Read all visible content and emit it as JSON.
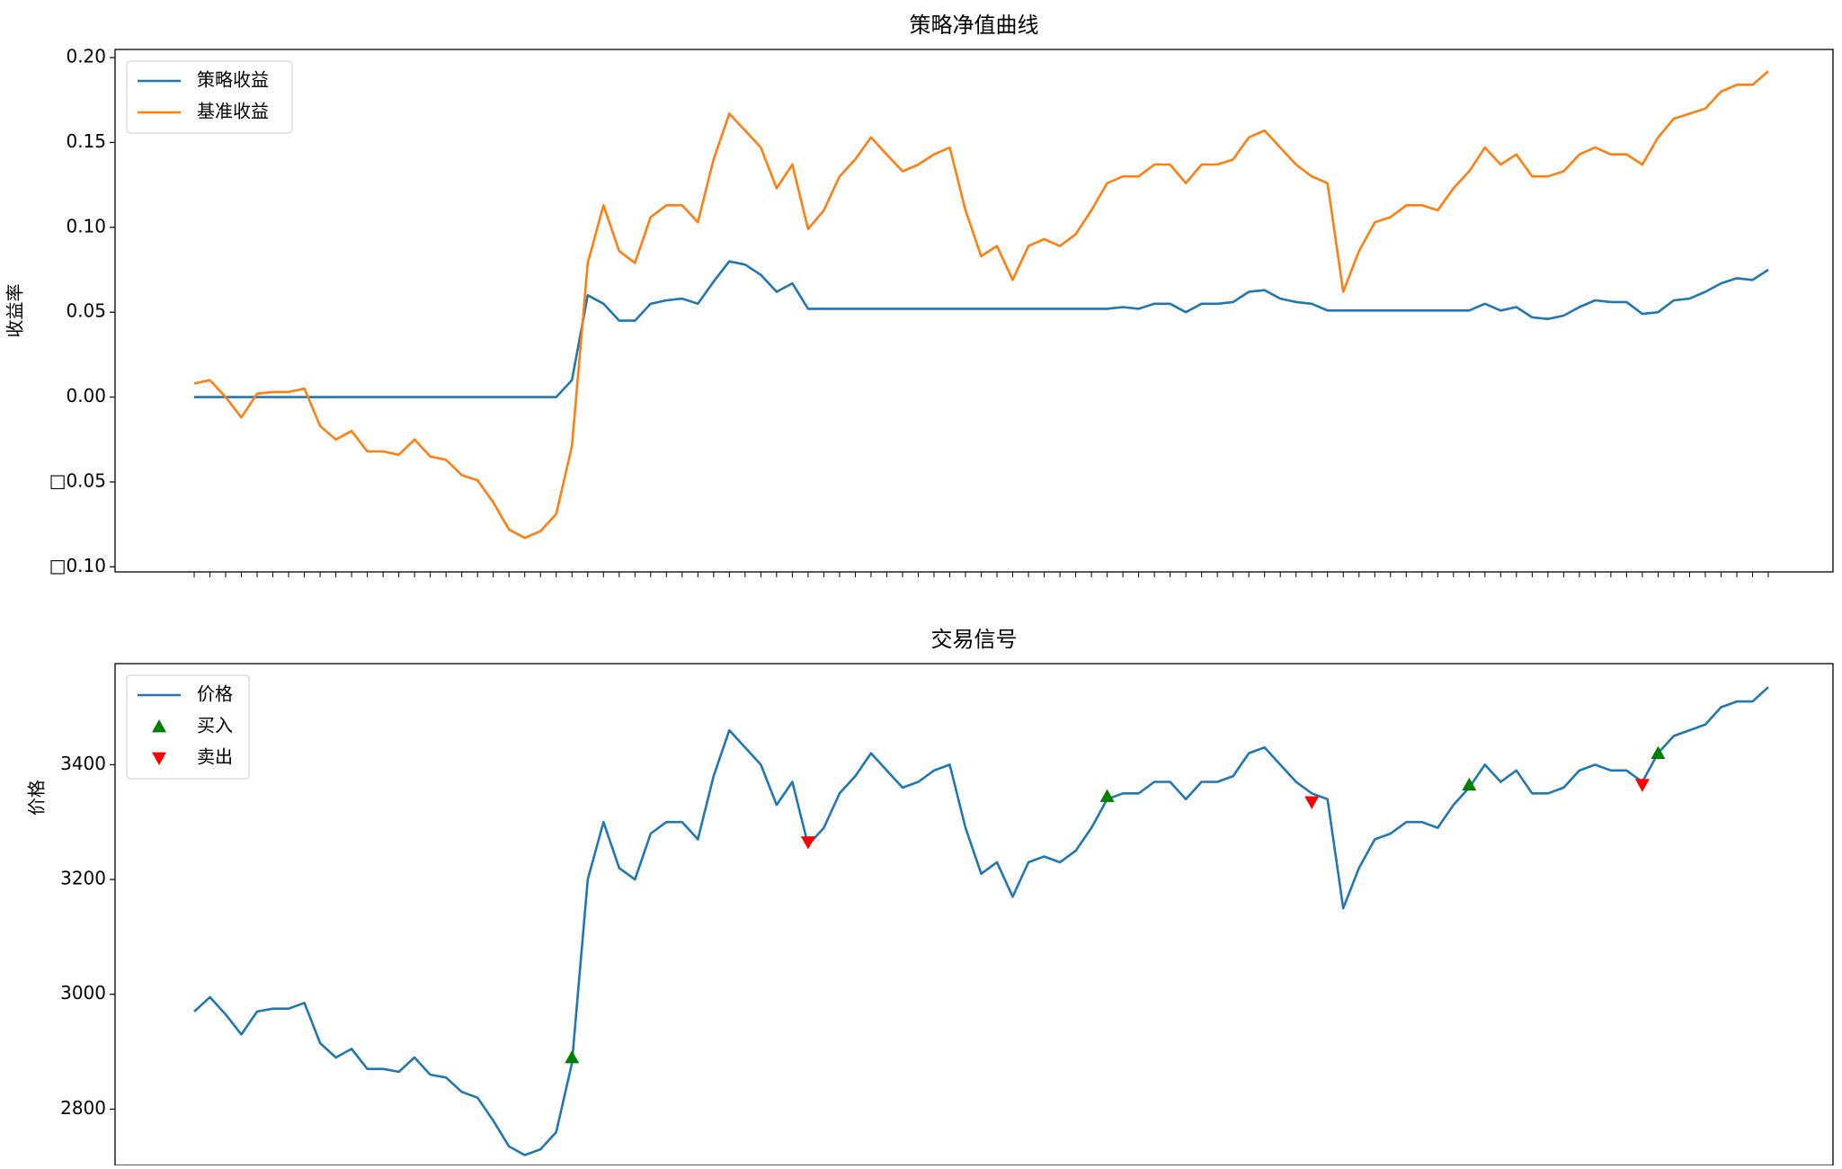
{
  "chart_data": [
    {
      "type": "line",
      "title": "策略净值曲线",
      "y_label": "收益率",
      "ylim": [
        -0.103,
        0.2048
      ],
      "yticks": [
        {
          "value": -0.1,
          "label": "□0.10"
        },
        {
          "value": -0.05,
          "label": "□0.05"
        },
        {
          "value": 0,
          "label": "0.00"
        },
        0.05,
        {
          "value": 0.1,
          "label": "0.10"
        },
        0.15,
        {
          "value": 0.2,
          "label": "0.20"
        }
      ],
      "legend": "upper left",
      "series": [
        {
          "name": "策略收益",
          "color": "#1f77b4",
          "values": [
            0,
            0,
            0,
            0,
            0,
            0,
            0,
            0,
            0,
            0,
            0,
            0,
            0,
            0,
            0,
            0,
            0,
            0,
            0,
            0,
            0,
            0,
            0,
            0,
            0.01,
            0.06,
            0.055,
            0.045,
            0.045,
            0.055,
            0.057,
            0.058,
            0.055,
            0.068,
            0.08,
            0.078,
            0.072,
            0.062,
            0.067,
            0.052,
            0.052,
            0.052,
            0.052,
            0.052,
            0.052,
            0.052,
            0.052,
            0.052,
            0.052,
            0.052,
            0.052,
            0.052,
            0.052,
            0.052,
            0.052,
            0.052,
            0.052,
            0.052,
            0.052,
            0.053,
            0.052,
            0.055,
            0.055,
            0.05,
            0.055,
            0.055,
            0.056,
            0.062,
            0.063,
            0.058,
            0.056,
            0.055,
            0.051,
            0.051,
            0.051,
            0.051,
            0.051,
            0.051,
            0.051,
            0.051,
            0.051,
            0.051,
            0.055,
            0.051,
            0.053,
            0.047,
            0.046,
            0.048,
            0.053,
            0.057,
            0.056,
            0.056,
            0.049,
            0.05,
            0.057,
            0.058,
            0.062,
            0.067,
            0.07,
            0.069,
            0.075
          ]
        },
        {
          "name": "基准收益",
          "color": "#ff7f0e",
          "values": [
            0.008,
            0.01,
            0.0,
            -0.012,
            0.002,
            0.003,
            0.003,
            0.005,
            -0.017,
            -0.025,
            -0.02,
            -0.032,
            -0.032,
            -0.034,
            -0.025,
            -0.035,
            -0.037,
            -0.046,
            -0.049,
            -0.062,
            -0.078,
            -0.083,
            -0.079,
            -0.069,
            -0.029,
            0.079,
            0.113,
            0.086,
            0.079,
            0.106,
            0.113,
            0.113,
            0.103,
            0.14,
            0.167,
            0.157,
            0.147,
            0.123,
            0.137,
            0.099,
            0.11,
            0.13,
            0.14,
            0.153,
            0.143,
            0.133,
            0.137,
            0.143,
            0.147,
            0.11,
            0.083,
            0.089,
            0.069,
            0.089,
            0.093,
            0.089,
            0.096,
            0.11,
            0.126,
            0.13,
            0.13,
            0.137,
            0.137,
            0.126,
            0.137,
            0.137,
            0.14,
            0.153,
            0.157,
            0.147,
            0.137,
            0.13,
            0.126,
            0.062,
            0.086,
            0.103,
            0.106,
            0.113,
            0.113,
            0.11,
            0.123,
            0.133,
            0.147,
            0.137,
            0.143,
            0.13,
            0.13,
            0.133,
            0.143,
            0.147,
            0.143,
            0.143,
            0.137,
            0.153,
            0.164,
            0.167,
            0.17,
            0.18,
            0.184,
            0.184,
            0.192
          ]
        }
      ]
    },
    {
      "type": "line",
      "title": "交易信号",
      "y_label": "价格",
      "ylim": [
        2702,
        3576
      ],
      "yticks": [
        2800,
        3000,
        3200,
        3400
      ],
      "legend": "upper left",
      "series": [
        {
          "name": "价格",
          "color": "#1f77b4",
          "values": [
            2970,
            2995,
            2965,
            2930,
            2970,
            2975,
            2975,
            2985,
            2915,
            2890,
            2905,
            2870,
            2870,
            2865,
            2890,
            2860,
            2855,
            2830,
            2820,
            2780,
            2735,
            2720,
            2730,
            2760,
            2880,
            3200,
            3300,
            3220,
            3200,
            3280,
            3300,
            3300,
            3270,
            3380,
            3460,
            3430,
            3400,
            3330,
            3370,
            3260,
            3290,
            3350,
            3380,
            3420,
            3390,
            3360,
            3370,
            3390,
            3400,
            3290,
            3210,
            3230,
            3170,
            3230,
            3240,
            3230,
            3250,
            3290,
            3340,
            3350,
            3350,
            3370,
            3370,
            3340,
            3370,
            3370,
            3380,
            3420,
            3430,
            3400,
            3370,
            3350,
            3340,
            3150,
            3220,
            3270,
            3280,
            3300,
            3300,
            3290,
            3330,
            3360,
            3400,
            3370,
            3390,
            3350,
            3350,
            3360,
            3390,
            3400,
            3390,
            3390,
            3370,
            3420,
            3450,
            3460,
            3470,
            3500,
            3510,
            3510,
            3535
          ]
        },
        {
          "name": "买入",
          "type": "scatter",
          "marker": "up",
          "color": "#008000",
          "x": [
            24,
            58,
            81,
            93
          ],
          "values": [
            2890,
            3345,
            3365,
            3420
          ]
        },
        {
          "name": "卖出",
          "type": "scatter",
          "marker": "down",
          "color": "#ff0000",
          "x": [
            39,
            71,
            92
          ],
          "values": [
            3265,
            3335,
            3365
          ]
        }
      ]
    }
  ]
}
